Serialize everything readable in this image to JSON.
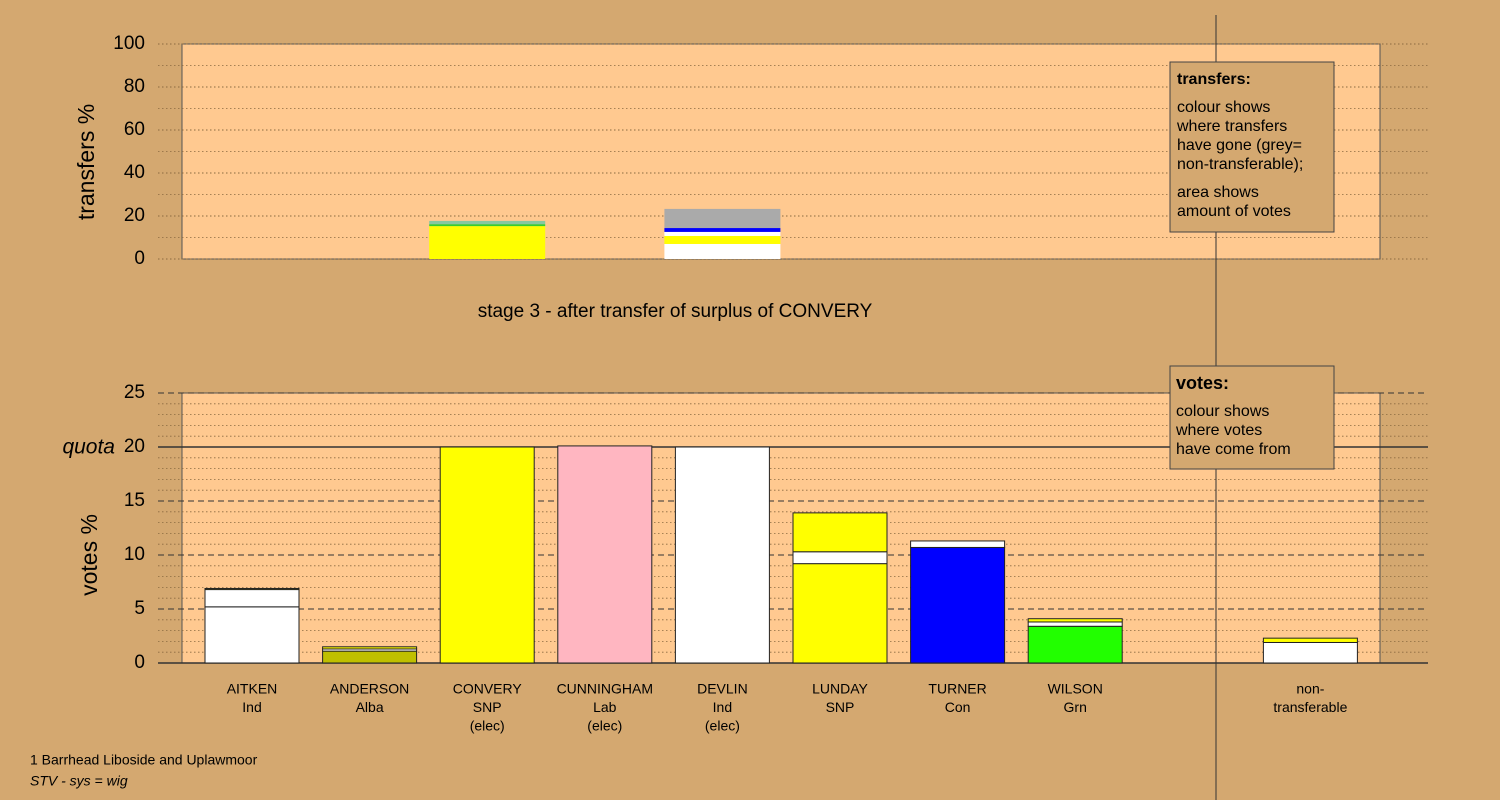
{
  "chart_data": [
    {
      "type": "stacked-bar",
      "ylabel": "transfers %",
      "ylim": [
        0,
        100
      ],
      "yticks": [
        0,
        20,
        40,
        60,
        80,
        100
      ],
      "y_minor_ticks": [
        10,
        30,
        50,
        70,
        90
      ],
      "series": [
        {
          "colors": [
            null,
            null,
            "#ffff00",
            null,
            "#ffffff",
            null,
            null,
            null,
            null,
            null
          ],
          "values": [
            null,
            null,
            15.3,
            null,
            7.0,
            null,
            null,
            null,
            null,
            null
          ]
        },
        {
          "colors": [
            null,
            null,
            "#33cc33",
            null,
            "#ffff00",
            null,
            null,
            null,
            null,
            null
          ],
          "values": [
            null,
            null,
            0.9,
            null,
            3.7,
            null,
            null,
            null,
            null,
            null
          ]
        },
        {
          "colors": [
            null,
            null,
            "#88c8a0",
            null,
            "#ffffff",
            null,
            null,
            null,
            null,
            null
          ],
          "values": [
            null,
            null,
            1.5,
            null,
            1.9,
            null,
            null,
            null,
            null,
            null
          ]
        },
        {
          "colors": [
            null,
            null,
            null,
            null,
            "#0000ff",
            null,
            null,
            null,
            null,
            null
          ],
          "values": [
            null,
            null,
            null,
            null,
            1.8,
            null,
            null,
            null,
            null,
            null
          ]
        },
        {
          "colors": [
            null,
            null,
            null,
            null,
            "#aaaaaa",
            null,
            null,
            null,
            null,
            null
          ],
          "values": [
            null,
            null,
            null,
            null,
            8.9,
            null,
            null,
            null,
            null,
            null
          ]
        }
      ]
    },
    {
      "type": "stacked-bar",
      "title": "stage 3 - after transfer of surplus of CONVERY",
      "ylabel": "votes %",
      "ylim": [
        0,
        25
      ],
      "yticks": [
        0,
        5,
        10,
        15,
        20,
        25
      ],
      "y_minor_ticks": [
        1,
        2,
        3,
        4,
        6,
        7,
        8,
        9,
        11,
        12,
        13,
        14,
        16,
        17,
        18,
        19,
        21,
        22,
        23,
        24
      ],
      "quota": 20,
      "quota_label": "quota",
      "categories": [
        [
          "AITKEN",
          "Ind"
        ],
        [
          "ANDERSON",
          "Alba"
        ],
        [
          "CONVERY",
          "SNP",
          "(elec)"
        ],
        [
          "CUNNINGHAM",
          "Lab",
          "(elec)"
        ],
        [
          "DEVLIN",
          "Ind",
          "(elec)"
        ],
        [
          "LUNDAY",
          "SNP"
        ],
        [
          "TURNER",
          "Con"
        ],
        [
          "WILSON",
          "Grn"
        ],
        null,
        [
          "non-",
          "transferable"
        ]
      ],
      "series": [
        {
          "colors": [
            "#ffffff",
            "#bfbf00",
            "#ffff00",
            "#ffb6c1",
            "#ffffff",
            "#ffff00",
            "#0000ff",
            "#22ff00",
            null,
            null
          ],
          "values": [
            5.2,
            1.1,
            20,
            20.1,
            20,
            9.2,
            10.7,
            3.4,
            null,
            null
          ]
        },
        {
          "color": "#ffffff",
          "values": [
            1.6,
            0.2,
            null,
            null,
            null,
            1.1,
            0.6,
            0.4,
            null,
            1.9
          ]
        },
        {
          "color": "#ffff00",
          "values": [
            0.1,
            0.2,
            null,
            null,
            null,
            3.6,
            null,
            0.3,
            null,
            0.4
          ]
        }
      ]
    }
  ],
  "transfers_box": {
    "title": "transfers:",
    "lines": [
      "colour shows",
      "where transfers",
      "have gone (grey=",
      "non-transferable);"
    ],
    "lines2": [
      "area shows",
      "amount of votes"
    ]
  },
  "votes_box": {
    "title": "votes:",
    "lines": [
      "colour shows",
      "where votes",
      "have come from"
    ]
  },
  "footer": {
    "ward": "1 Barrhead Liboside and Uplawmoor",
    "system": "STV - sys = wig"
  }
}
